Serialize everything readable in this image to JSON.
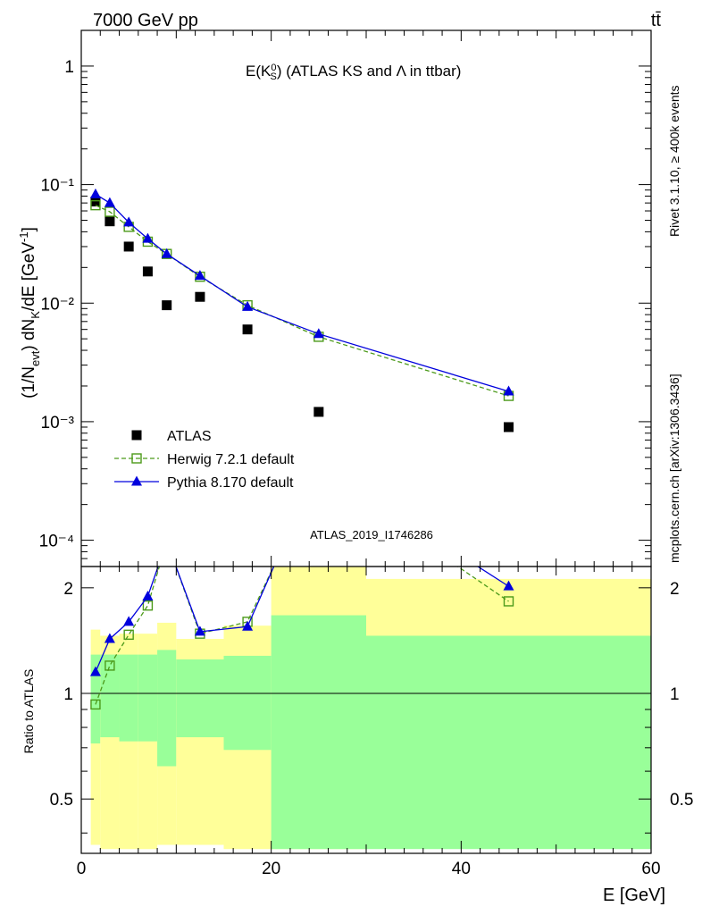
{
  "header": {
    "left": "7000 GeV pp",
    "right": "tt̄"
  },
  "side_texts": {
    "rivet": "Rivet 3.1.10, ≥ 400k events",
    "mcplots": "mcplots.cern.ch [arXiv:1306.3436]"
  },
  "chart_data": [
    {
      "type": "scatter",
      "title": "E(K⁰S) (ATLAS KS and Λ in ttbar)",
      "watermark": "ATLAS_2019_I1746286",
      "xlabel": "",
      "ylabel": "(1/Nevt) dNK/dE [GeV⁻¹]",
      "xlim": [
        0,
        60
      ],
      "ylim": [
        6e-05,
        2.0
      ],
      "yscale": "log",
      "yticks": [
        {
          "value": 0.0001,
          "label": "10⁻⁴"
        },
        {
          "value": 0.001,
          "label": "10⁻³"
        },
        {
          "value": 0.01,
          "label": "10⁻²"
        },
        {
          "value": 0.1,
          "label": "10⁻¹"
        },
        {
          "value": 1,
          "label": "1"
        }
      ],
      "legend_position": "bottom-left",
      "series": [
        {
          "name": "ATLAS",
          "color": "#000000",
          "marker": "filled-square",
          "x": [
            1.5,
            3,
            5,
            7,
            9,
            12.5,
            17.5,
            25,
            45
          ],
          "y": [
            0.072,
            0.049,
            0.03,
            0.0185,
            0.0096,
            0.0113,
            0.006,
            0.00121,
            0.0009
          ]
        },
        {
          "name": "Herwig 7.2.1 default",
          "color": "#4c9a1a",
          "marker": "open-square",
          "line": "dashed",
          "x": [
            1.5,
            3,
            5,
            7,
            9,
            12.5,
            17.5,
            25,
            45
          ],
          "y": [
            0.067,
            0.059,
            0.044,
            0.033,
            0.026,
            0.0167,
            0.0096,
            0.0052,
            0.00165
          ]
        },
        {
          "name": "Pythia 8.170 default",
          "color": "#0000dd",
          "marker": "filled-triangle",
          "line": "solid",
          "x": [
            1.5,
            3,
            5,
            7,
            9,
            12.5,
            17.5,
            25,
            45
          ],
          "y": [
            0.083,
            0.07,
            0.048,
            0.035,
            0.026,
            0.017,
            0.0093,
            0.0055,
            0.0018
          ]
        }
      ]
    },
    {
      "type": "line",
      "xlabel": "E [GeV]",
      "ylabel": "Ratio to ATLAS",
      "xlim": [
        0,
        60
      ],
      "ylim": [
        0.35,
        2.3
      ],
      "yscale": "log",
      "yticks": [
        0.5,
        1,
        2
      ],
      "xticks": [
        0,
        20,
        40,
        60
      ],
      "reference_line": 1,
      "bins": [
        [
          1,
          2
        ],
        [
          2,
          4
        ],
        [
          4,
          6
        ],
        [
          6,
          8
        ],
        [
          8,
          10
        ],
        [
          10,
          15
        ],
        [
          15,
          20
        ],
        [
          20,
          30
        ],
        [
          30,
          60
        ]
      ],
      "band_outer": [
        [
          0.37,
          1.52
        ],
        [
          0.36,
          1.46
        ],
        [
          0.36,
          1.48
        ],
        [
          0.36,
          1.48
        ],
        [
          0.37,
          1.59
        ],
        [
          0.37,
          1.43
        ],
        [
          0.36,
          1.56
        ],
        [
          0.36,
          2.3
        ],
        [
          0.37,
          2.12
        ]
      ],
      "band_inner": [
        [
          0.72,
          1.29
        ],
        [
          0.75,
          1.29
        ],
        [
          0.73,
          1.29
        ],
        [
          0.73,
          1.29
        ],
        [
          0.62,
          1.33
        ],
        [
          0.75,
          1.25
        ],
        [
          0.69,
          1.28
        ],
        [
          0.36,
          1.67
        ],
        [
          0.36,
          1.46
        ]
      ],
      "colors": {
        "band_outer": "#ffff99",
        "band_inner": "#99ff99"
      },
      "series": [
        {
          "name": "Herwig 7.2.1 default",
          "color": "#4c9a1a",
          "marker": "open-square",
          "line": "dashed",
          "x": [
            1.5,
            3,
            5,
            7,
            9,
            12.5,
            17.5,
            25,
            45
          ],
          "y": [
            0.93,
            1.2,
            1.47,
            1.78,
            2.71,
            1.48,
            1.6,
            4.3,
            1.83
          ]
        },
        {
          "name": "Pythia 8.170 default",
          "color": "#0000dd",
          "marker": "filled-triangle",
          "line": "solid",
          "x": [
            1.5,
            3,
            5,
            7,
            9,
            12.5,
            17.5,
            25,
            45
          ],
          "y": [
            1.15,
            1.43,
            1.6,
            1.89,
            2.71,
            1.5,
            1.55,
            4.5,
            2.02
          ]
        }
      ]
    }
  ]
}
